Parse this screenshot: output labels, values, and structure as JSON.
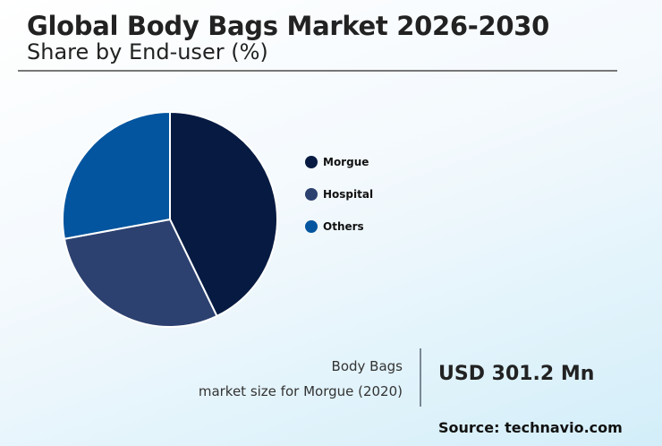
{
  "header": {
    "title": "Global Body Bags Market 2026-2030",
    "subtitle": "Share by End-user (%)"
  },
  "legend": [
    {
      "label": "Morgue",
      "color": "#071b42"
    },
    {
      "label": "Hospital",
      "color": "#2c4170"
    },
    {
      "label": "Others",
      "color": "#04559f"
    }
  ],
  "kpi": {
    "label_line1": "Body Bags",
    "label_line2": "market size for Morgue (2020)",
    "value": "USD 301.2 Mn"
  },
  "source": "Source: technavio.com",
  "chart_data": {
    "type": "pie",
    "title": "Global Body Bags Market 2026-2030",
    "subtitle": "Share by End-user (%)",
    "categories": [
      "Morgue",
      "Hospital",
      "Others"
    ],
    "values": [
      42.8,
      29.3,
      27.9
    ],
    "colors": [
      "#071b42",
      "#2c4170",
      "#04559f"
    ],
    "start_angle": "12 o'clock, clockwise",
    "legend_position": "right",
    "data_labels": false
  }
}
